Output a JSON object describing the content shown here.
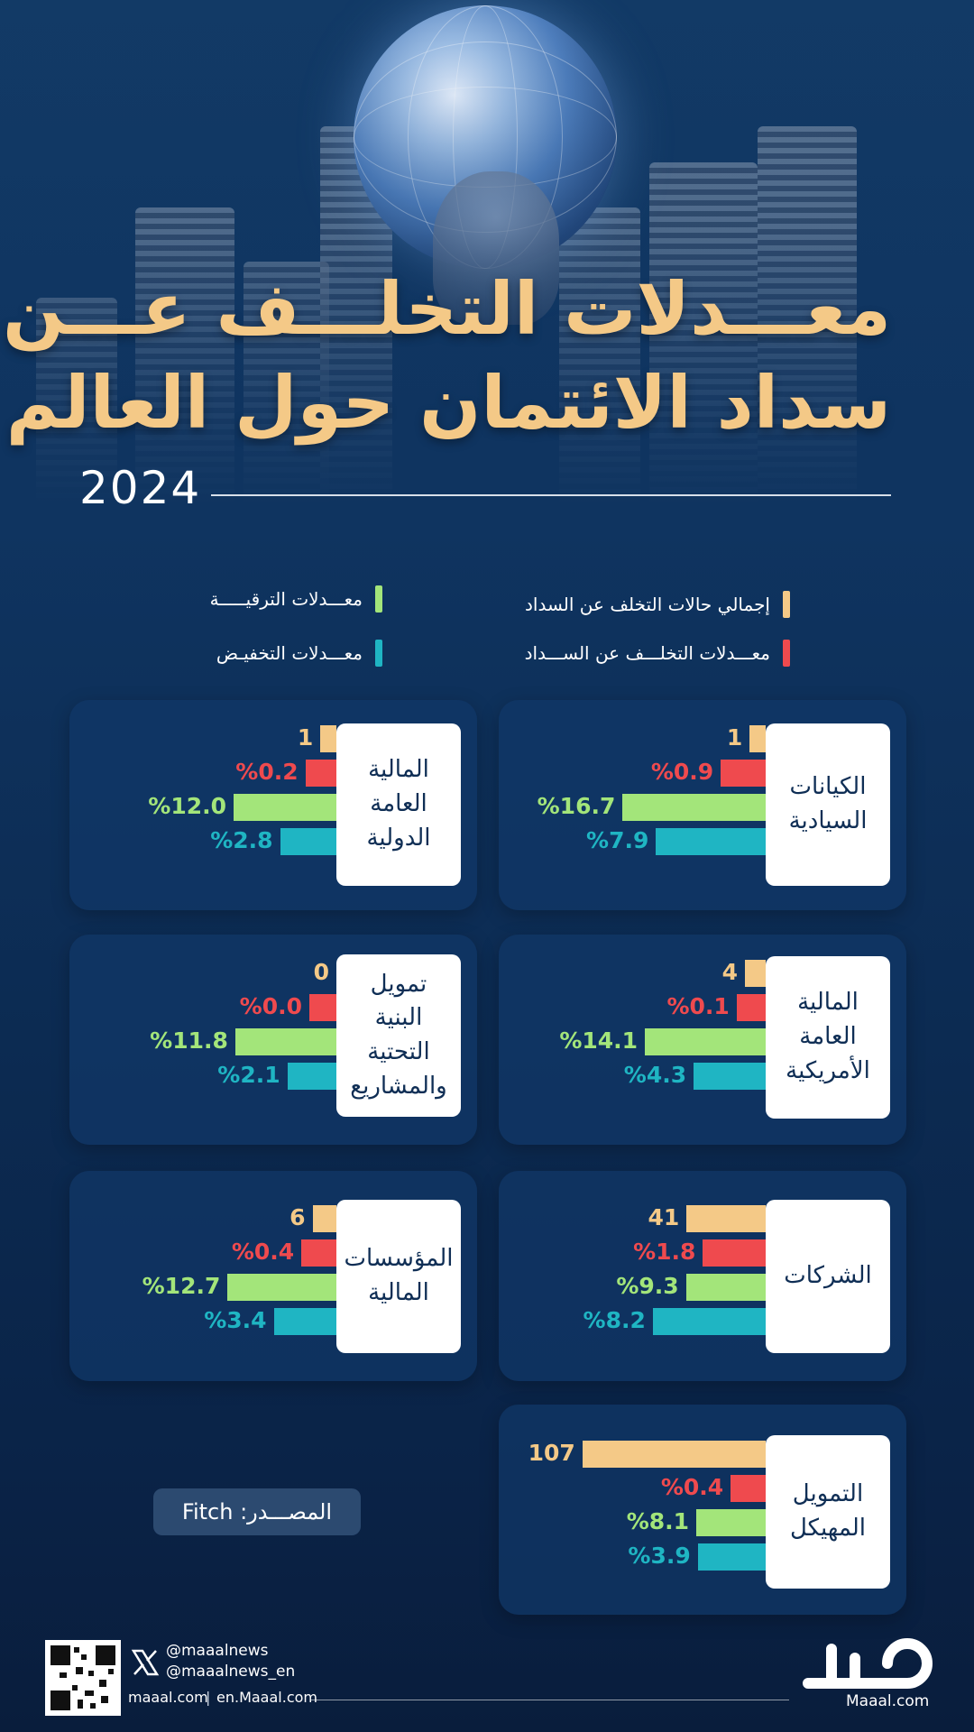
{
  "title_line1": "معـــدلات التخلـــف عـــن",
  "title_line2": "سداد الائتمان حول العالم",
  "year": "2024",
  "legend": [
    {
      "label": "إجمالي حالات التخلف عن السداد",
      "color": "#f4c987"
    },
    {
      "label": "معـــدلات الترقيـــــة",
      "color": "#a3e57a"
    },
    {
      "label": "معـــدلات التخلـــف عن الســـداد",
      "color": "#ef4a4e"
    },
    {
      "label": "معـــدلات التخفيـض",
      "color": "#1fb5c3"
    }
  ],
  "chart_data": {
    "type": "bar",
    "title": "معـــدلات التخلـــف عـــن سداد الائتمان حول العالم",
    "subtitle": "2024",
    "series_order": [
      "total_defaults",
      "default_rate",
      "upgrade_rate",
      "downgrade_rate"
    ],
    "series": [
      {
        "name": "إجمالي حالات التخلف عن السداد",
        "color": "#f4c987"
      },
      {
        "name": "معـــدلات التخلـــف عن الســـداد",
        "color": "#ef4a4e"
      },
      {
        "name": "معـــدلات الترقيـــــة",
        "color": "#a3e57a"
      },
      {
        "name": "معـــدلات التخفيـض",
        "color": "#1fb5c3"
      }
    ],
    "categories": [
      {
        "label": "الكيانات السيادية",
        "values": [
          1,
          0.9,
          16.7,
          7.9
        ],
        "value_labels": [
          "1",
          "%0.9",
          "%16.7",
          "%7.9"
        ]
      },
      {
        "label": "المالية العامة الدولية",
        "values": [
          1,
          0.2,
          12.0,
          2.8
        ],
        "value_labels": [
          "1",
          "%0.2",
          "%12.0",
          "%2.8"
        ]
      },
      {
        "label": "المالية العامة الأمريكية",
        "values": [
          4,
          0.1,
          14.1,
          4.3
        ],
        "value_labels": [
          "4",
          "%0.1",
          "%14.1",
          "%4.3"
        ]
      },
      {
        "label": "تمويل البنية التحتية والمشاريع",
        "values": [
          0,
          0.0,
          11.8,
          2.1
        ],
        "value_labels": [
          "0",
          "%0.0",
          "%11.8",
          "%2.1"
        ]
      },
      {
        "label": "الشركات",
        "values": [
          41,
          1.8,
          9.3,
          8.2
        ],
        "value_labels": [
          "41",
          "%1.8",
          "%9.3",
          "%8.2"
        ]
      },
      {
        "label": "المؤسسات المالية",
        "values": [
          6,
          0.4,
          12.7,
          3.4
        ],
        "value_labels": [
          "6",
          "%0.4",
          "%12.7",
          "%3.4"
        ]
      },
      {
        "label": "التمويل المهيكل",
        "values": [
          107,
          0.4,
          8.1,
          3.9
        ],
        "value_labels": [
          "107",
          "%0.4",
          "%8.1",
          "%3.9"
        ]
      }
    ]
  },
  "card_labels": [
    [
      "الكيانات",
      "السيادية"
    ],
    [
      "المالية",
      "العامة",
      "الدولية"
    ],
    [
      "المالية",
      "العامة",
      "الأمريكية"
    ],
    [
      "تمويل",
      "البنية",
      "التحتية",
      "والمشاريع"
    ],
    [
      "الشركات"
    ],
    [
      "المؤسسات",
      "المالية"
    ],
    [
      "التمويل",
      "المهيكل"
    ]
  ],
  "source": "المصـــدر: Fitch",
  "footer": {
    "handle1": "@maaalnews",
    "handle2": "@maaalnews_en",
    "site1": "maaal.com",
    "site2": "en.Maaal.com",
    "logo_text": "Maaal.com"
  }
}
